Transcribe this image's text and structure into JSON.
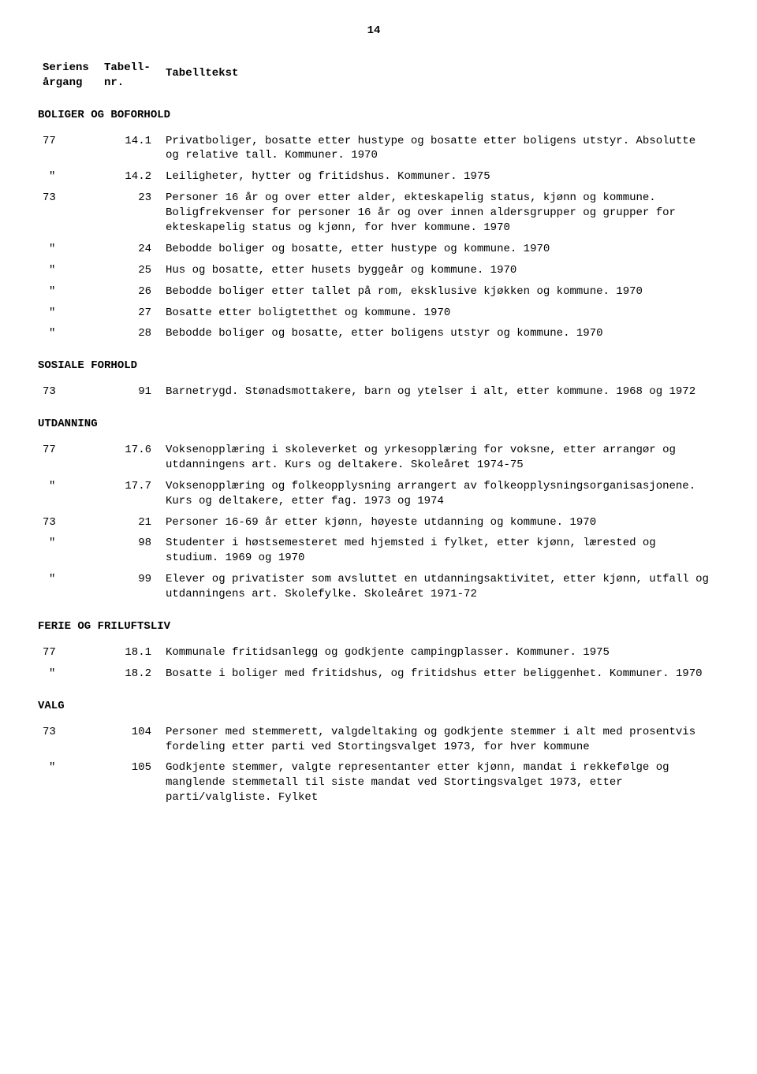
{
  "page_number": "14",
  "header": {
    "col1_line1": "Seriens",
    "col1_line2": "årgang",
    "col2_line1": "Tabell-",
    "col2_line2": "nr.",
    "col3": "Tabelltekst"
  },
  "sections": [
    {
      "title": "BOLIGER OG BOFORHOLD",
      "entries": [
        {
          "year": "77",
          "num": "14.1",
          "text": "Privatboliger, bosatte etter hustype og bosatte etter boligens utstyr.  Absolutte og relative tall.  Kommuner.  1970"
        },
        {
          "year": "\"",
          "num": "14.2",
          "text": "Leiligheter, hytter og fritidshus.  Kommuner.  1975"
        },
        {
          "year": "73",
          "num": "23",
          "text": "Personer 16 år og over etter alder, ekteskapelig status, kjønn og kommune. Boligfrekvenser for personer 16 år og over innen aldersgrupper og grupper for ekteskapelig status og kjønn, for hver kommune.  1970"
        },
        {
          "year": "\"",
          "num": "24",
          "text": "Bebodde boliger og bosatte, etter hustype og kommune.  1970"
        },
        {
          "year": "\"",
          "num": "25",
          "text": "Hus og bosatte, etter husets byggeår og kommune.  1970"
        },
        {
          "year": "\"",
          "num": "26",
          "text": "Bebodde boliger etter tallet på rom, eksklusive kjøkken og kommune.  1970"
        },
        {
          "year": "\"",
          "num": "27",
          "text": "Bosatte etter boligtetthet og kommune.  1970"
        },
        {
          "year": "\"",
          "num": "28",
          "text": "Bebodde boliger og bosatte, etter boligens utstyr og kommune.  1970"
        }
      ]
    },
    {
      "title": "SOSIALE FORHOLD",
      "entries": [
        {
          "year": "73",
          "num": "91",
          "text": "Barnetrygd.  Stønadsmottakere, barn og ytelser i alt, etter kommune.  1968 og 1972"
        }
      ]
    },
    {
      "title": "UTDANNING",
      "entries": [
        {
          "year": "77",
          "num": "17.6",
          "text": "Voksenopplæring i skoleverket og yrkesopplæring for voksne, etter arrangør og utdanningens art.  Kurs og deltakere.  Skoleåret 1974-75"
        },
        {
          "year": "\"",
          "num": "17.7",
          "text": "Voksenopplæring og folkeopplysning arrangert av folkeopplysningsorganisasjonene.  Kurs og deltakere, etter fag.  1973 og 1974"
        },
        {
          "year": "73",
          "num": "21",
          "text": "Personer 16-69 år etter kjønn, høyeste utdanning og kommune.  1970"
        },
        {
          "year": "\"",
          "num": "98",
          "text": "Studenter i høstsemesteret med hjemsted i fylket, etter kjønn, lærested og studium.  1969 og 1970"
        },
        {
          "year": "\"",
          "num": "99",
          "text": "Elever og privatister som avsluttet en utdanningsaktivitet, etter kjønn, utfall og utdanningens art.  Skolefylke.  Skoleåret 1971-72"
        }
      ]
    },
    {
      "title": "FERIE OG FRILUFTSLIV",
      "entries": [
        {
          "year": "77",
          "num": "18.1",
          "text": "Kommunale fritidsanlegg og godkjente campingplasser.  Kommuner.  1975"
        },
        {
          "year": "\"",
          "num": "18.2",
          "text": "Bosatte i boliger med fritidshus, og fritidshus etter beliggenhet.  Kommuner.  1970"
        }
      ]
    },
    {
      "title": "VALG",
      "entries": [
        {
          "year": "73",
          "num": "104",
          "text": "Personer med stemmerett, valgdeltaking og godkjente stemmer i alt med prosentvis fordeling etter parti ved Stortingsvalget 1973, for hver kommune"
        },
        {
          "year": "\"",
          "num": "105",
          "text": "Godkjente stemmer, valgte representanter etter kjønn, mandat i rekkefølge og manglende stemmetall til siste mandat ved Stortingsvalget 1973, etter parti/valgliste.  Fylket"
        }
      ]
    }
  ]
}
